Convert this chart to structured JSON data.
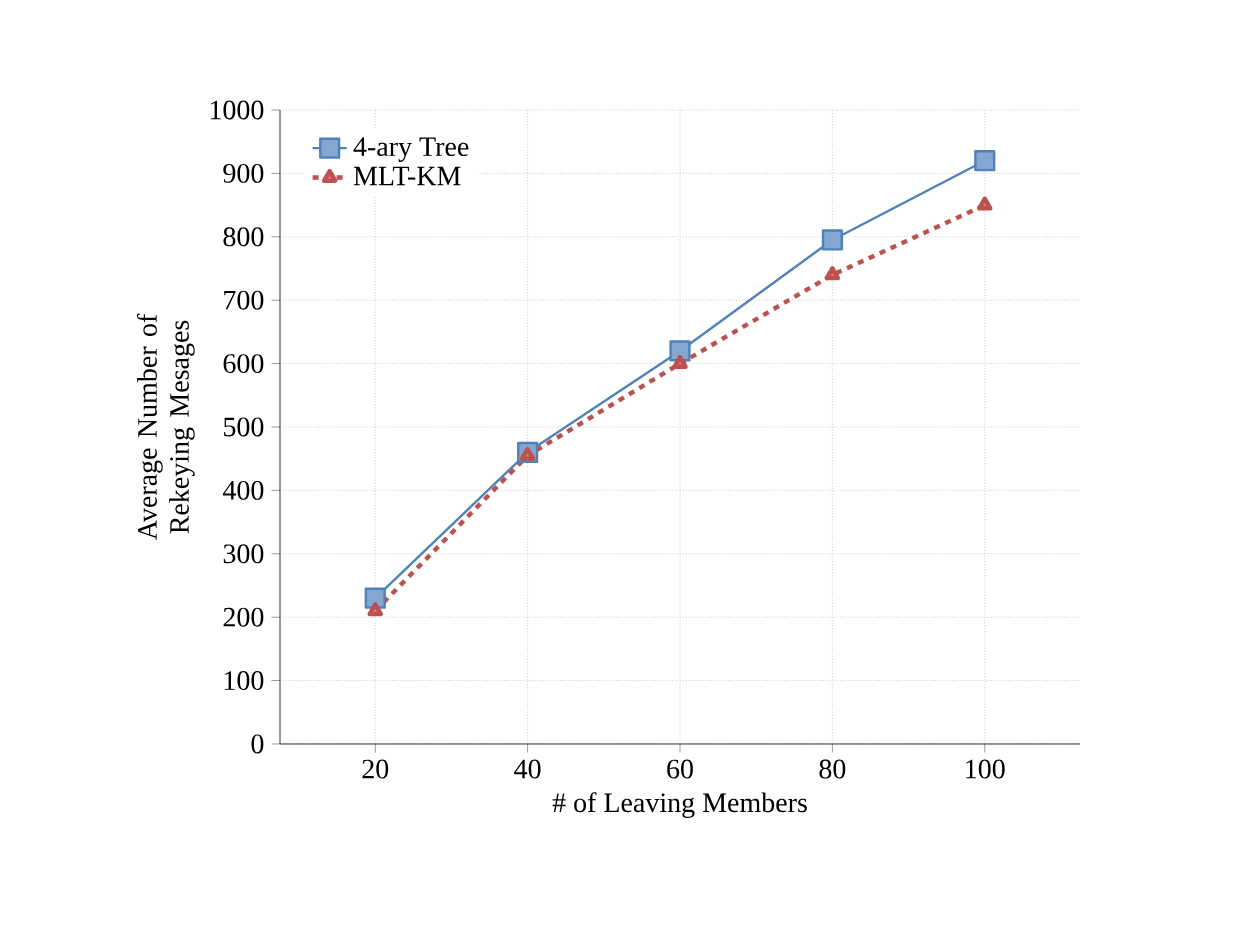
{
  "chart_data": {
    "type": "line",
    "xlabel": "# of Leaving Members",
    "ylabel": "Average Number of Rekeying Mesages",
    "categories": [
      "20",
      "40",
      "60",
      "80",
      "100"
    ],
    "series": [
      {
        "name": "4-ary Tree",
        "color": "#4f81bd",
        "values": [
          230,
          460,
          620,
          795,
          920
        ],
        "marker": "square",
        "line_style": "solid"
      },
      {
        "name": "MLT-KM",
        "color": "#c0504d",
        "values": [
          210,
          455,
          600,
          740,
          850
        ],
        "marker": "triangle",
        "line_style": "dashed"
      }
    ],
    "ylim": [
      0,
      1000
    ],
    "yticks": [
      0,
      100,
      200,
      300,
      400,
      500,
      600,
      700,
      800,
      900,
      1000
    ],
    "grid": true,
    "legend": "top left"
  }
}
